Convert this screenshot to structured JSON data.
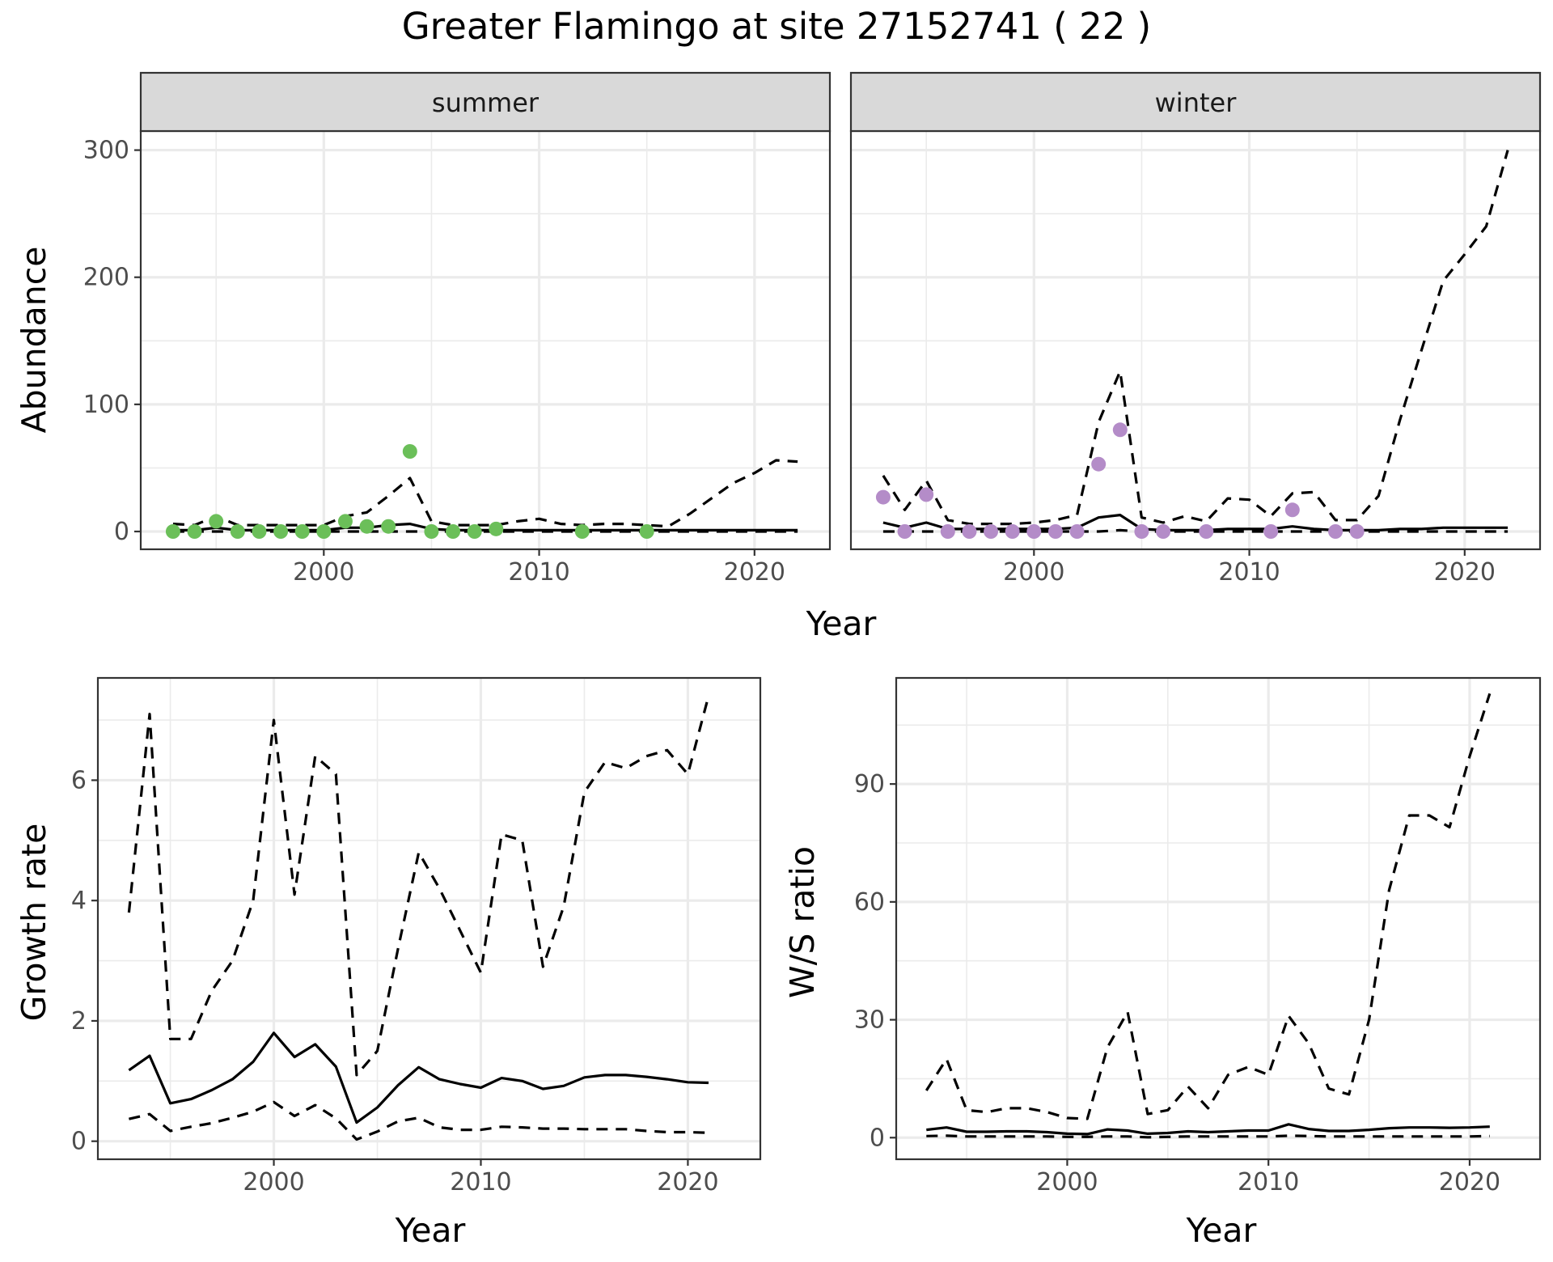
{
  "title": "Greater Flamingo at site 27152741 ( 22 )",
  "colors": {
    "summer_points": "#6bbf59",
    "winter_points": "#b48cc8",
    "lines": "#000000"
  },
  "chart_data": [
    {
      "type": "line",
      "facets": [
        "summer",
        "winter"
      ],
      "xlabel": "Year",
      "ylabel": "Abundance",
      "xlim": [
        1991.5,
        2023.5
      ],
      "ylim": [
        -14,
        315
      ],
      "x_ticks": [
        2000,
        2010,
        2020
      ],
      "y_ticks": [
        0,
        100,
        200,
        300
      ],
      "grid": true,
      "panels": [
        {
          "facet": "summer",
          "point_color": "#6bbf59",
          "observed": {
            "x": [
              1993,
              1994,
              1995,
              1996,
              1997,
              1998,
              1999,
              2000,
              2001,
              2002,
              2003,
              2004,
              2005,
              2006,
              2007,
              2008,
              2012,
              2015
            ],
            "y": [
              0,
              0,
              8,
              0,
              0,
              0,
              0,
              0,
              8,
              4,
              4,
              63,
              0,
              0,
              0,
              2,
              0,
              0
            ]
          },
          "series": [
            {
              "style": "solid",
              "x": [
                1993,
                1994,
                1995,
                1996,
                1997,
                1998,
                1999,
                2000,
                2001,
                2002,
                2003,
                2004,
                2005,
                2006,
                2007,
                2008,
                2009,
                2010,
                2011,
                2012,
                2013,
                2014,
                2015,
                2016,
                2017,
                2018,
                2019,
                2020,
                2021,
                2022
              ],
              "y": [
                1,
                1,
                3,
                1,
                1,
                1,
                1,
                1,
                3,
                3,
                5,
                6,
                2,
                1,
                1,
                1,
                1,
                1,
                1,
                1,
                1,
                1,
                1,
                1,
                1,
                1,
                1,
                1,
                1,
                1
              ]
            },
            {
              "style": "dashed",
              "x": [
                1993,
                1994,
                1995,
                1996,
                1997,
                1998,
                1999,
                2000,
                2001,
                2002,
                2003,
                2004,
                2005,
                2006,
                2007,
                2008,
                2009,
                2010,
                2011,
                2012,
                2013,
                2014,
                2015,
                2016,
                2017,
                2018,
                2019,
                2020,
                2021,
                2022
              ],
              "y": [
                6,
                5,
                12,
                5,
                5,
                5,
                5,
                5,
                12,
                15,
                28,
                42,
                8,
                5,
                5,
                5,
                8,
                10,
                6,
                5,
                6,
                6,
                5,
                4,
                14,
                26,
                38,
                46,
                56,
                55
              ]
            },
            {
              "style": "dashed",
              "x": [
                1993,
                1994,
                1995,
                1996,
                1997,
                1998,
                1999,
                2000,
                2001,
                2002,
                2003,
                2004,
                2005,
                2006,
                2007,
                2008,
                2009,
                2010,
                2011,
                2012,
                2013,
                2014,
                2015,
                2016,
                2017,
                2018,
                2019,
                2020,
                2021,
                2022
              ],
              "y": [
                0,
                0,
                0,
                0,
                0,
                0,
                0,
                0,
                0,
                0,
                0,
                0,
                0,
                0,
                0,
                0,
                0,
                0,
                0,
                0,
                0,
                0,
                0,
                0,
                0,
                0,
                0,
                0,
                0,
                0
              ]
            }
          ]
        },
        {
          "facet": "winter",
          "point_color": "#b48cc8",
          "observed": {
            "x": [
              1993,
              1994,
              1995,
              1996,
              1997,
              1998,
              1999,
              2000,
              2001,
              2002,
              2003,
              2004,
              2005,
              2006,
              2008,
              2011,
              2012,
              2014,
              2015
            ],
            "y": [
              27,
              0,
              29,
              0,
              0,
              0,
              0,
              0,
              0,
              0,
              53,
              80,
              0,
              0,
              0,
              0,
              17,
              0,
              0
            ]
          },
          "series": [
            {
              "style": "solid",
              "x": [
                1993,
                1994,
                1995,
                1996,
                1997,
                1998,
                1999,
                2000,
                2001,
                2002,
                2003,
                2004,
                2005,
                2006,
                2007,
                2008,
                2009,
                2010,
                2011,
                2012,
                2013,
                2014,
                2015,
                2016,
                2017,
                2018,
                2019,
                2020,
                2021,
                2022
              ],
              "y": [
                7,
                3,
                7,
                2,
                2,
                2,
                2,
                2,
                2,
                3,
                11,
                13,
                2,
                1,
                1,
                1,
                2,
                2,
                2,
                4,
                2,
                1,
                1,
                1,
                2,
                2,
                3,
                3,
                3,
                3
              ]
            },
            {
              "style": "dashed",
              "x": [
                1993,
                1994,
                1995,
                1996,
                1997,
                1998,
                1999,
                2000,
                2001,
                2002,
                2003,
                2004,
                2005,
                2006,
                2007,
                2008,
                2009,
                2010,
                2011,
                2012,
                2013,
                2014,
                2015,
                2016,
                2017,
                2018,
                2019,
                2020,
                2021,
                2022
              ],
              "y": [
                44,
                17,
                40,
                9,
                6,
                6,
                6,
                7,
                9,
                13,
                86,
                126,
                11,
                7,
                12,
                8,
                26,
                25,
                12,
                30,
                31,
                9,
                9,
                28,
                88,
                143,
                197,
                218,
                240,
                300
              ]
            },
            {
              "style": "dashed",
              "x": [
                1993,
                1994,
                1995,
                1996,
                1997,
                1998,
                1999,
                2000,
                2001,
                2002,
                2003,
                2004,
                2005,
                2006,
                2007,
                2008,
                2009,
                2010,
                2011,
                2012,
                2013,
                2014,
                2015,
                2016,
                2017,
                2018,
                2019,
                2020,
                2021,
                2022
              ],
              "y": [
                0,
                0,
                0,
                0,
                0,
                0,
                0,
                0,
                0,
                0,
                0,
                1,
                0,
                0,
                0,
                0,
                0,
                0,
                0,
                0,
                0,
                0,
                0,
                0,
                0,
                0,
                0,
                0,
                0,
                0
              ]
            }
          ]
        }
      ]
    },
    {
      "type": "line",
      "xlabel": "Year",
      "ylabel": "Growth rate",
      "xlim": [
        1991.5,
        2023.5
      ],
      "ylim": [
        -0.3,
        7.7
      ],
      "x_ticks": [
        2000,
        2010,
        2020
      ],
      "y_ticks": [
        0,
        2,
        4,
        6
      ],
      "grid": true,
      "series": [
        {
          "style": "solid",
          "x": [
            1993,
            1994,
            1995,
            1996,
            1997,
            1998,
            1999,
            2000,
            2001,
            2002,
            2003,
            2004,
            2005,
            2006,
            2007,
            2008,
            2009,
            2010,
            2011,
            2012,
            2013,
            2014,
            2015,
            2016,
            2017,
            2018,
            2019,
            2020,
            2021
          ],
          "y": [
            1.18,
            1.42,
            0.63,
            0.7,
            0.85,
            1.03,
            1.32,
            1.8,
            1.4,
            1.61,
            1.24,
            0.31,
            0.56,
            0.93,
            1.23,
            1.03,
            0.95,
            0.89,
            1.05,
            1.0,
            0.87,
            0.92,
            1.06,
            1.1,
            1.1,
            1.07,
            1.03,
            0.98,
            0.97
          ]
        },
        {
          "style": "dashed",
          "x": [
            1993,
            1994,
            1995,
            1996,
            1997,
            1998,
            1999,
            2000,
            2001,
            2002,
            2003,
            2004,
            2005,
            2006,
            2007,
            2008,
            2009,
            2010,
            2011,
            2012,
            2013,
            2014,
            2015,
            2016,
            2017,
            2018,
            2019,
            2020,
            2021
          ],
          "y": [
            3.8,
            7.1,
            1.7,
            1.7,
            2.5,
            3.0,
            4.0,
            7.0,
            4.1,
            6.4,
            6.1,
            1.1,
            1.5,
            3.2,
            4.8,
            4.2,
            3.5,
            2.8,
            5.1,
            5.0,
            2.9,
            3.9,
            5.8,
            6.3,
            6.2,
            6.4,
            6.5,
            6.1,
            7.4
          ]
        },
        {
          "style": "dashed",
          "x": [
            1993,
            1994,
            1995,
            1996,
            1997,
            1998,
            1999,
            2000,
            2001,
            2002,
            2003,
            2004,
            2005,
            2006,
            2007,
            2008,
            2009,
            2010,
            2011,
            2012,
            2013,
            2014,
            2015,
            2016,
            2017,
            2018,
            2019,
            2020,
            2021
          ],
          "y": [
            0.37,
            0.45,
            0.17,
            0.24,
            0.3,
            0.39,
            0.49,
            0.65,
            0.42,
            0.6,
            0.38,
            0.03,
            0.16,
            0.33,
            0.39,
            0.23,
            0.19,
            0.19,
            0.24,
            0.23,
            0.21,
            0.21,
            0.2,
            0.2,
            0.2,
            0.17,
            0.15,
            0.15,
            0.14
          ]
        }
      ]
    },
    {
      "type": "line",
      "xlabel": "Year",
      "ylabel": "W/S ratio",
      "xlim": [
        1991.5,
        2023.5
      ],
      "ylim": [
        -5.5,
        117
      ],
      "x_ticks": [
        2000,
        2010,
        2020
      ],
      "y_ticks": [
        0,
        30,
        60,
        90
      ],
      "grid": true,
      "series": [
        {
          "style": "solid",
          "x": [
            1993,
            1994,
            1995,
            1996,
            1997,
            1998,
            1999,
            2000,
            2001,
            2002,
            2003,
            2004,
            2005,
            2006,
            2007,
            2008,
            2009,
            2010,
            2011,
            2012,
            2013,
            2014,
            2015,
            2016,
            2017,
            2018,
            2019,
            2020,
            2021
          ],
          "y": [
            2.0,
            2.6,
            1.5,
            1.5,
            1.6,
            1.6,
            1.4,
            1.0,
            0.9,
            2.1,
            1.8,
            1.0,
            1.2,
            1.6,
            1.4,
            1.6,
            1.8,
            1.8,
            3.4,
            2.2,
            1.7,
            1.7,
            2.0,
            2.4,
            2.6,
            2.6,
            2.5,
            2.6,
            2.8
          ]
        },
        {
          "style": "dashed",
          "x": [
            1993,
            1994,
            1995,
            1996,
            1997,
            1998,
            1999,
            2000,
            2001,
            2002,
            2003,
            2004,
            2005,
            2006,
            2007,
            2008,
            2009,
            2010,
            2011,
            2012,
            2013,
            2014,
            2015,
            2016,
            2017,
            2018,
            2019,
            2020,
            2021
          ],
          "y": [
            12,
            20,
            7,
            6.5,
            7.5,
            7.5,
            6.5,
            5,
            4.8,
            23,
            32,
            6,
            7,
            13,
            7.5,
            16,
            18,
            16,
            31,
            24,
            12.5,
            11,
            30,
            63,
            82,
            82,
            79,
            97,
            113
          ]
        },
        {
          "style": "dashed",
          "x": [
            1993,
            1994,
            1995,
            1996,
            1997,
            1998,
            1999,
            2000,
            2001,
            2002,
            2003,
            2004,
            2005,
            2006,
            2007,
            2008,
            2009,
            2010,
            2011,
            2012,
            2013,
            2014,
            2015,
            2016,
            2017,
            2018,
            2019,
            2020,
            2021
          ],
          "y": [
            0.4,
            0.5,
            0.3,
            0.3,
            0.3,
            0.3,
            0.3,
            0.2,
            0.2,
            0.3,
            0.3,
            0.1,
            0.2,
            0.3,
            0.3,
            0.3,
            0.3,
            0.3,
            0.5,
            0.4,
            0.3,
            0.3,
            0.3,
            0.3,
            0.3,
            0.3,
            0.3,
            0.3,
            0.4
          ]
        }
      ]
    }
  ]
}
